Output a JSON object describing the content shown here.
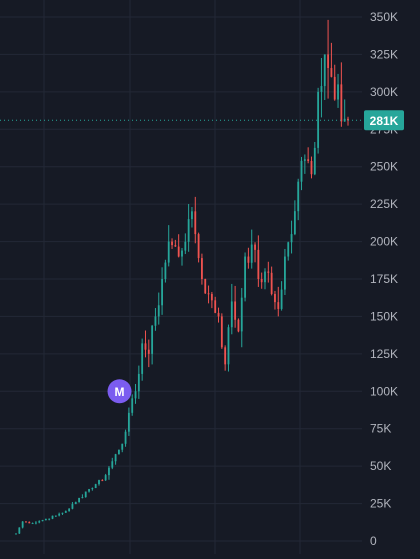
{
  "chart_data": {
    "type": "candlestick",
    "y_axis": {
      "min": 0,
      "max": 350000,
      "ticks": [
        {
          "value": 0,
          "label": "0"
        },
        {
          "value": 25000,
          "label": "25K"
        },
        {
          "value": 50000,
          "label": "50K"
        },
        {
          "value": 75000,
          "label": "75K"
        },
        {
          "value": 100000,
          "label": "100K"
        },
        {
          "value": 125000,
          "label": "125K"
        },
        {
          "value": 150000,
          "label": "150K"
        },
        {
          "value": 175000,
          "label": "175K"
        },
        {
          "value": 200000,
          "label": "200K"
        },
        {
          "value": 225000,
          "label": "225K"
        },
        {
          "value": 250000,
          "label": "250K"
        },
        {
          "value": 275000,
          "label": "275K"
        },
        {
          "value": 300000,
          "label": "300K"
        },
        {
          "value": 325000,
          "label": "325K"
        },
        {
          "value": 350000,
          "label": "350K"
        }
      ]
    },
    "current_price": {
      "value": 281000,
      "label": "281K"
    },
    "marker": {
      "label": "M",
      "index": 36,
      "value": 100000
    },
    "colors": {
      "up": "#26a69a",
      "down": "#ef5350",
      "background": "#161a25",
      "grid": "#232836",
      "axis_text": "#b2b5be",
      "price_line": "#26a69a",
      "marker": "#7b5cf0"
    },
    "anchors": [
      [
        0,
        5000
      ],
      [
        2,
        13000
      ],
      [
        5,
        12000
      ],
      [
        8,
        14000
      ],
      [
        12,
        17000
      ],
      [
        15,
        20000
      ],
      [
        18,
        26000
      ],
      [
        21,
        33000
      ],
      [
        24,
        38000
      ],
      [
        27,
        44000
      ],
      [
        30,
        58000
      ],
      [
        33,
        73000
      ],
      [
        36,
        100000
      ],
      [
        38,
        132000
      ],
      [
        40,
        125000
      ],
      [
        42,
        150000
      ],
      [
        44,
        175000
      ],
      [
        46,
        200000
      ],
      [
        49,
        190000
      ],
      [
        52,
        215000
      ],
      [
        54,
        205000
      ],
      [
        56,
        175000
      ],
      [
        58,
        165000
      ],
      [
        61,
        150000
      ],
      [
        63,
        118000
      ],
      [
        65,
        160000
      ],
      [
        67,
        140000
      ],
      [
        69,
        190000
      ],
      [
        71,
        198000
      ],
      [
        73,
        175000
      ],
      [
        75,
        180000
      ],
      [
        77,
        165000
      ],
      [
        79,
        155000
      ],
      [
        81,
        190000
      ],
      [
        83,
        205000
      ],
      [
        85,
        240000
      ],
      [
        87,
        255000
      ],
      [
        89,
        245000
      ],
      [
        91,
        300000
      ],
      [
        93,
        325000
      ],
      [
        95,
        310000
      ],
      [
        97,
        305000
      ],
      [
        99,
        282000
      ],
      [
        100,
        281000
      ]
    ]
  }
}
